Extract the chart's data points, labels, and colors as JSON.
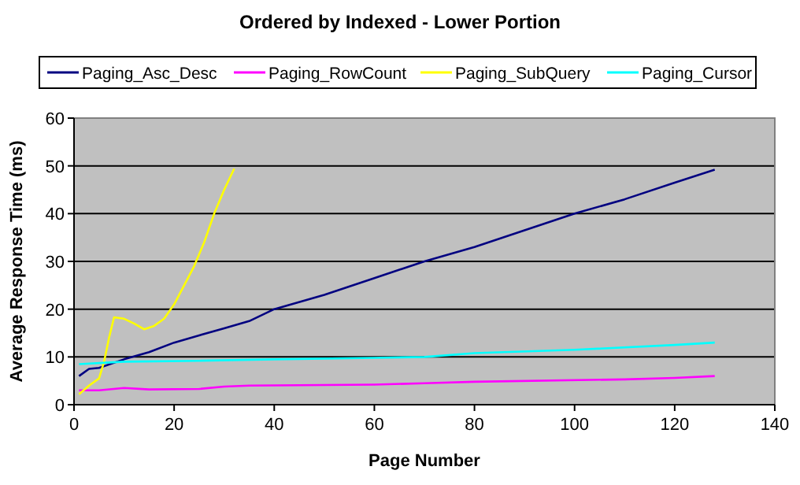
{
  "chart_data": {
    "type": "line",
    "title": "Ordered by Indexed - Lower Portion",
    "xlabel": "Page Number",
    "ylabel": "Average Response Time (ms)",
    "xlim": [
      0,
      140
    ],
    "xticks": [
      0,
      20,
      40,
      60,
      80,
      100,
      120,
      140
    ],
    "ylim": [
      0,
      60
    ],
    "yticks": [
      0,
      10,
      20,
      30,
      40,
      50,
      60
    ],
    "grid": "y",
    "legend": "top",
    "marker": "none",
    "line_style": "solid",
    "series": [
      {
        "name": "Paging_Asc_Desc",
        "color": "#000080",
        "x": [
          1,
          3,
          5,
          10,
          15,
          20,
          25,
          30,
          35,
          40,
          50,
          60,
          70,
          80,
          90,
          100,
          110,
          120,
          128
        ],
        "values": [
          6,
          7.5,
          7.7,
          9.5,
          11,
          13,
          14.5,
          16,
          17.5,
          20,
          23,
          26.5,
          30,
          33,
          36.5,
          40,
          43,
          46.5,
          49.2
        ]
      },
      {
        "name": "Paging_RowCount",
        "color": "#ff00ff",
        "x": [
          1,
          5,
          10,
          15,
          25,
          30,
          35,
          60,
          70,
          80,
          110,
          120,
          128
        ],
        "values": [
          3,
          3,
          3.5,
          3.2,
          3.3,
          3.8,
          4,
          4.2,
          4.5,
          4.8,
          5.3,
          5.6,
          6
        ]
      },
      {
        "name": "Paging_SubQuery",
        "color": "#ffff00",
        "x": [
          1,
          3,
          5,
          6,
          7,
          8,
          10,
          12,
          14,
          16,
          18,
          20,
          22,
          24,
          26,
          28,
          30,
          32
        ],
        "values": [
          2.2,
          4,
          5.5,
          9,
          14,
          18.3,
          18,
          17,
          15.8,
          16.5,
          18,
          21,
          25,
          29,
          34,
          40,
          45,
          49.4
        ]
      },
      {
        "name": "Paging_Cursor",
        "color": "#00ffff",
        "x": [
          1,
          10,
          25,
          40,
          60,
          70,
          80,
          100,
          120,
          128
        ],
        "values": [
          8.5,
          9,
          9.2,
          9.5,
          9.8,
          10,
          10.8,
          11.5,
          12.5,
          13
        ]
      }
    ]
  }
}
